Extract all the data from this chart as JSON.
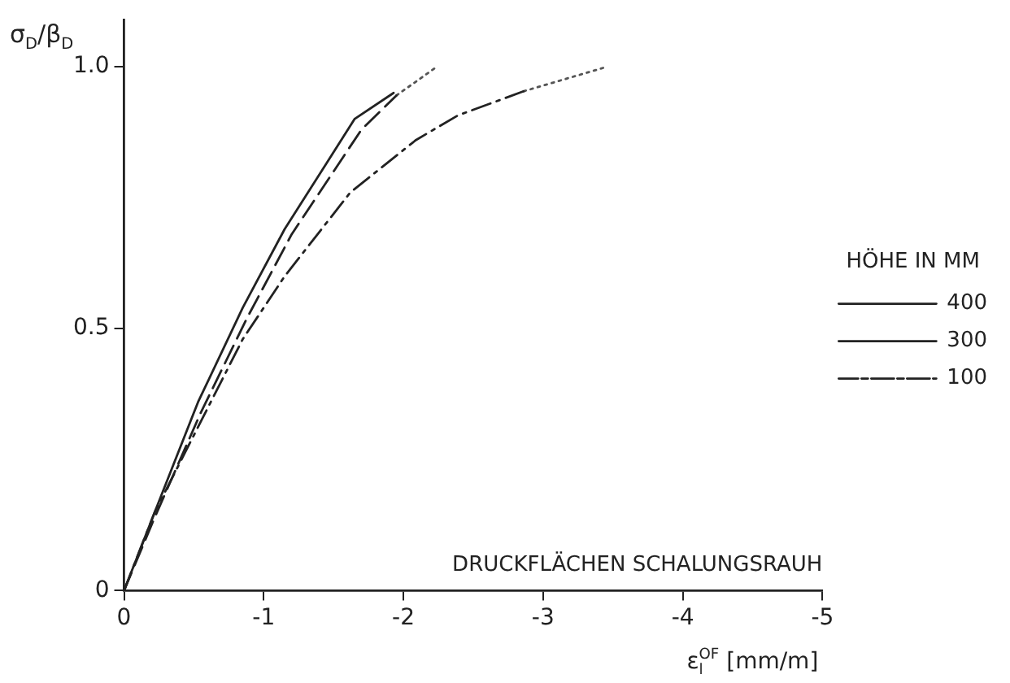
{
  "chart_data": {
    "type": "line",
    "ylabel": "σ$_{D}$/β$_{D}$",
    "xlabel": "ε$_{l}$$^{OF}$ [mm/m]",
    "legend_title": "HÖHE IN MM",
    "annotations": [
      "DRUCKFLÄCHEN SCHALUNGSRAUH"
    ],
    "xlim": [
      0,
      -5
    ],
    "xticks": [
      0,
      -1,
      -2,
      -3,
      -4,
      -5
    ],
    "ylim": [
      0,
      1.09
    ],
    "yticks": [
      0,
      0.5,
      {
        "value": 1,
        "label": "1.0"
      }
    ],
    "grid": false,
    "legend": "right",
    "marker": "none",
    "series": [
      {
        "name": "400",
        "color": "#222222",
        "line_style": "solid",
        "x": [
          0,
          -0.22,
          -0.53,
          -0.85,
          -1.15,
          -1.46,
          -1.65,
          -1.93
        ],
        "values": [
          0,
          0.15,
          0.36,
          0.54,
          0.69,
          0.82,
          0.9,
          0.95
        ]
      },
      {
        "name": "300",
        "color": "#222222",
        "line_style": "dashed",
        "x": [
          0,
          -0.22,
          -0.55,
          -0.88,
          -1.2,
          -1.5,
          -1.7,
          -1.95
        ],
        "values": [
          0,
          0.14,
          0.34,
          0.52,
          0.68,
          0.8,
          0.88,
          0.945
        ]
      },
      {
        "name": "100",
        "color": "#222222",
        "line_style": "dashdot",
        "x": [
          0,
          -0.22,
          -0.85,
          -1.15,
          -1.62,
          -2.09,
          -2.39,
          -2.86
        ],
        "values": [
          0,
          0.15,
          0.48,
          0.6,
          0.76,
          0.86,
          0.907,
          0.953
        ]
      },
      {
        "color": "#555555",
        "line_style": "dotted",
        "x": [
          -1.95,
          -2.24
        ],
        "values": [
          0.945,
          1.0
        ]
      },
      {
        "color": "#555555",
        "line_style": "dotted",
        "x": [
          -2.86,
          -3.46
        ],
        "values": [
          0.953,
          1.0
        ]
      }
    ]
  }
}
